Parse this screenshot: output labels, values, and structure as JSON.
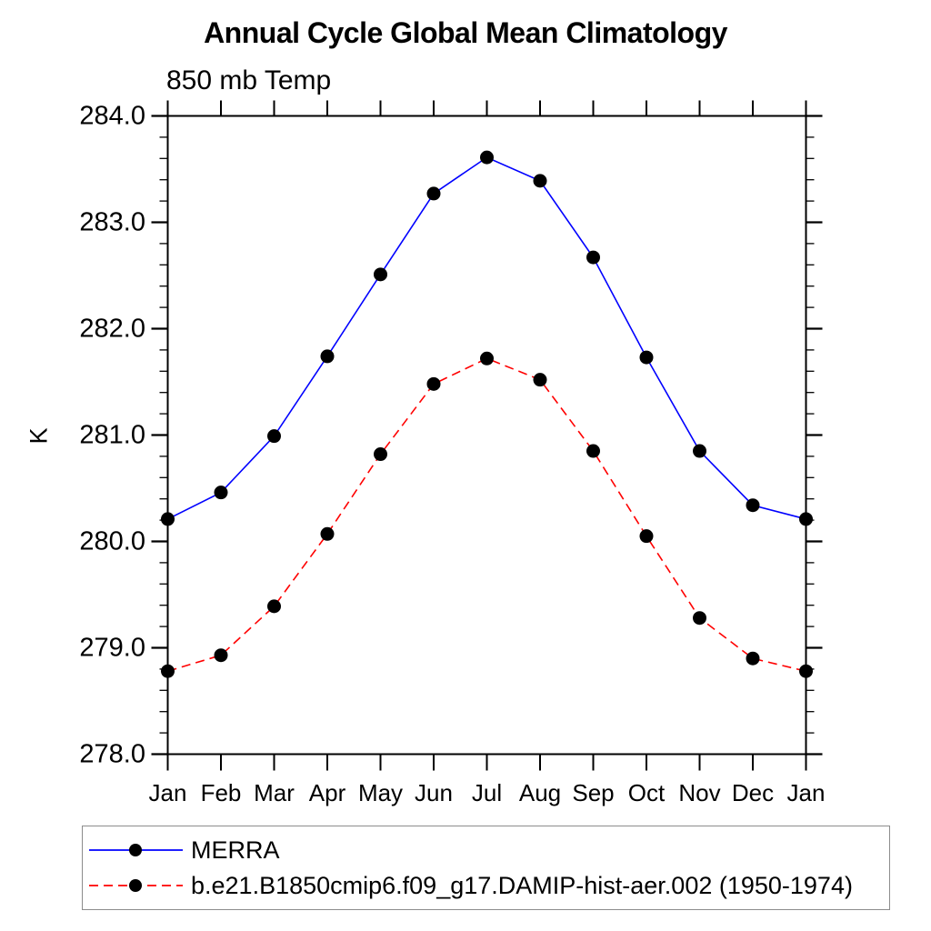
{
  "page": {
    "background_color": "#ffffff"
  },
  "chart_data": {
    "type": "line",
    "title": "Annual Cycle Global Mean Climatology",
    "subtitle": "850 mb Temp",
    "ylabel": "K",
    "x_categories": [
      "Jan",
      "Feb",
      "Mar",
      "Apr",
      "May",
      "Jun",
      "Jul",
      "Aug",
      "Sep",
      "Oct",
      "Nov",
      "Dec",
      "Jan"
    ],
    "ylim": [
      278.0,
      284.0
    ],
    "ytick_labels": [
      "278.0",
      "279.0",
      "280.0",
      "281.0",
      "282.0",
      "283.0",
      "284.0"
    ],
    "ytick_interval": 1.0,
    "yminor_interval": 0.2,
    "grid": false,
    "axis_color": "#000000",
    "marker_color": "#000000",
    "legend_position": "bottom-left-box",
    "legend_border_color": "#8c8c8c",
    "series": [
      {
        "name": "MERRA",
        "color": "#0000ff",
        "line_style": "solid",
        "marker": "filled-circle",
        "values": [
          280.21,
          280.46,
          280.99,
          281.74,
          282.51,
          283.27,
          283.61,
          283.39,
          282.67,
          281.73,
          280.85,
          280.34,
          280.21
        ]
      },
      {
        "name": "b.e21.B1850cmip6.f09_g17.DAMIP-hist-aer.002 (1950-1974)",
        "color": "#ff0000",
        "line_style": "dashed",
        "marker": "filled-circle",
        "values": [
          278.78,
          278.93,
          279.39,
          280.07,
          280.82,
          281.48,
          281.72,
          281.52,
          280.85,
          280.05,
          279.28,
          278.9,
          278.78
        ]
      }
    ]
  }
}
